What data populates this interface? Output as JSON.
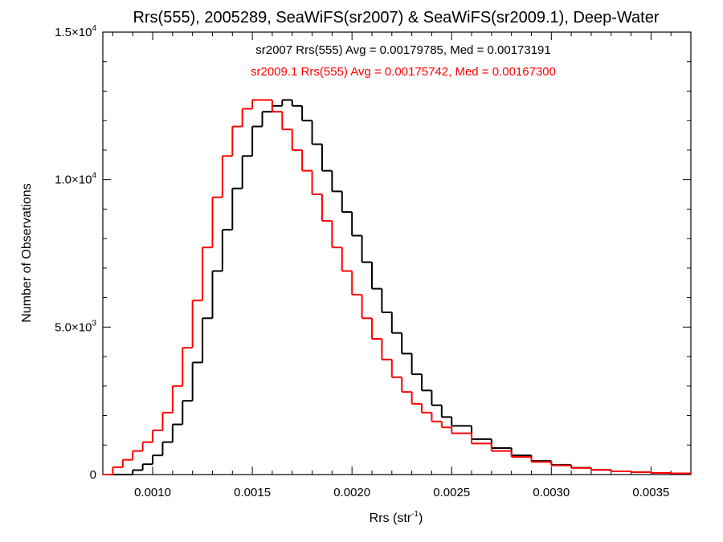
{
  "chart_data": {
    "type": "line",
    "step": true,
    "title": "Rrs(555), 2005289, SeaWiFS(sr2007) & SeaWiFS(sr2009.1), Deep-Water",
    "xlabel": "Rrs (str",
    "xlabel_sup": "-1",
    "xlabel_end": ")",
    "ylabel": "Number of Observations",
    "xlim": [
      0.00075,
      0.0037
    ],
    "ylim": [
      0,
      15000
    ],
    "grid": false,
    "x_ticks": [
      {
        "value": 0.001,
        "label": "0.0010"
      },
      {
        "value": 0.0015,
        "label": "0.0015"
      },
      {
        "value": 0.002,
        "label": "0.0020"
      },
      {
        "value": 0.0025,
        "label": "0.0025"
      },
      {
        "value": 0.003,
        "label": "0.0030"
      },
      {
        "value": 0.0035,
        "label": "0.0035"
      }
    ],
    "y_ticks": [
      {
        "value": 0,
        "mantissa": "0",
        "exponent": ""
      },
      {
        "value": 5000,
        "mantissa": "5.0×10",
        "exponent": "3"
      },
      {
        "value": 10000,
        "mantissa": "1.0×10",
        "exponent": "4"
      },
      {
        "value": 15000,
        "mantissa": "1.5×10",
        "exponent": "4"
      }
    ],
    "annotations": [
      {
        "text": "sr2007 Rrs(555) Avg = 0.00179785, Med = 0.00173191",
        "color": "#000000"
      },
      {
        "text": "sr2009.1 Rrs(555) Avg = 0.00175742, Med = 0.00167300",
        "color": "#ff0000"
      }
    ],
    "series": [
      {
        "name": "sr2007",
        "color": "#000000",
        "x": [
          0.00075,
          0.0008,
          0.00085,
          0.0009,
          0.00095,
          0.001,
          0.00105,
          0.0011,
          0.00115,
          0.0012,
          0.00125,
          0.0013,
          0.00135,
          0.0014,
          0.00145,
          0.0015,
          0.00155,
          0.0016,
          0.00165,
          0.0017,
          0.00175,
          0.0018,
          0.00185,
          0.0019,
          0.00195,
          0.002,
          0.00205,
          0.0021,
          0.00215,
          0.0022,
          0.00225,
          0.0023,
          0.00235,
          0.0024,
          0.00245,
          0.0025,
          0.0026,
          0.0027,
          0.0028,
          0.0029,
          0.003,
          0.0031,
          0.0032,
          0.0033,
          0.0034,
          0.0035,
          0.0036,
          0.0037
        ],
        "values": [
          0,
          0,
          0,
          150,
          350,
          650,
          1100,
          1700,
          2500,
          3800,
          5300,
          6900,
          8300,
          9700,
          10800,
          11800,
          12300,
          12500,
          12700,
          12500,
          12000,
          11200,
          10300,
          9600,
          8900,
          8100,
          7200,
          6300,
          5500,
          4800,
          4100,
          3400,
          2850,
          2350,
          1950,
          1650,
          1200,
          900,
          650,
          460,
          330,
          230,
          160,
          110,
          80,
          55,
          40,
          30
        ]
      },
      {
        "name": "sr2009.1",
        "color": "#ff0000",
        "x": [
          0.00075,
          0.0008,
          0.00085,
          0.0009,
          0.00095,
          0.001,
          0.00105,
          0.0011,
          0.00115,
          0.0012,
          0.00125,
          0.0013,
          0.00135,
          0.0014,
          0.00145,
          0.0015,
          0.00155,
          0.0016,
          0.00165,
          0.0017,
          0.00175,
          0.0018,
          0.00185,
          0.0019,
          0.00195,
          0.002,
          0.00205,
          0.0021,
          0.00215,
          0.0022,
          0.00225,
          0.0023,
          0.00235,
          0.0024,
          0.00245,
          0.0025,
          0.0026,
          0.0027,
          0.0028,
          0.0029,
          0.003,
          0.0031,
          0.0032,
          0.0033,
          0.0034,
          0.0035,
          0.0036,
          0.0037
        ],
        "values": [
          0,
          250,
          500,
          800,
          1100,
          1500,
          2100,
          3000,
          4300,
          5900,
          7700,
          9400,
          10800,
          11800,
          12400,
          12700,
          12700,
          12300,
          11700,
          11000,
          10300,
          9500,
          8600,
          7700,
          6900,
          6100,
          5300,
          4600,
          3900,
          3300,
          2800,
          2400,
          2100,
          1800,
          1600,
          1400,
          1050,
          800,
          600,
          430,
          310,
          220,
          160,
          110,
          80,
          55,
          40,
          30
        ]
      }
    ]
  }
}
